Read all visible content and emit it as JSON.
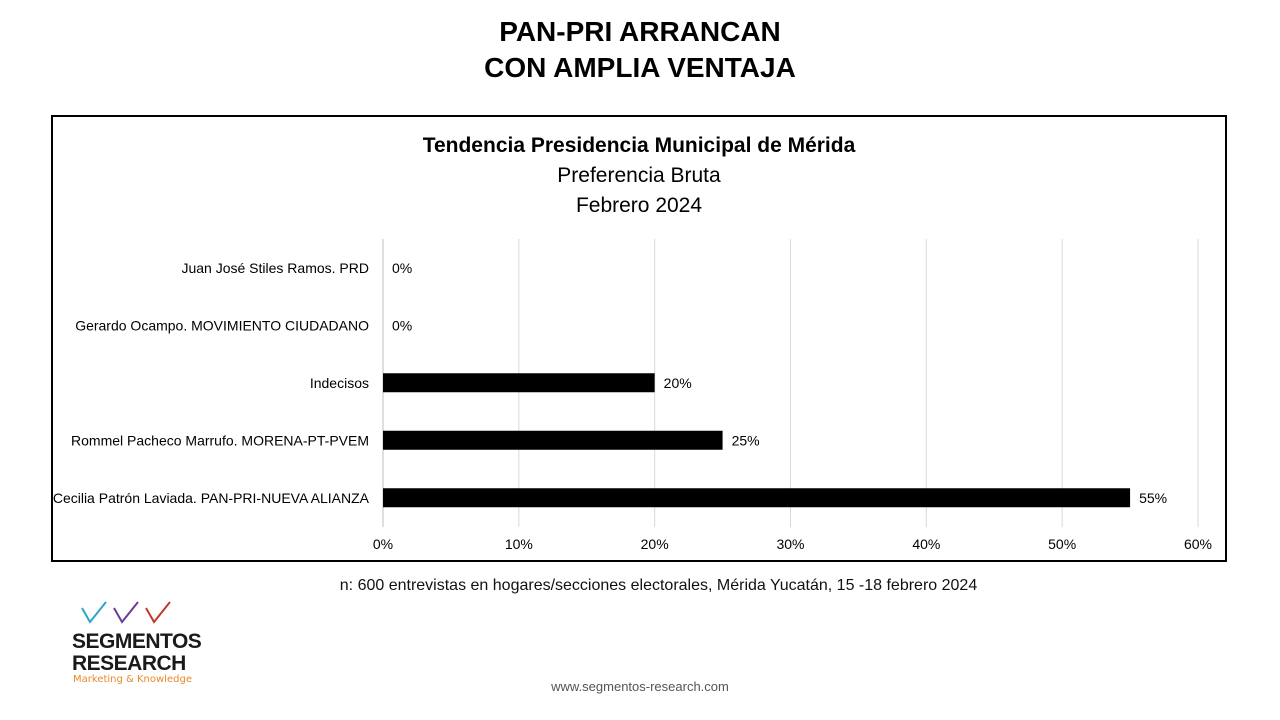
{
  "headline": {
    "line1": "PAN-PRI ARRANCAN",
    "line2": "CON AMPLIA VENTAJA"
  },
  "chart_data": {
    "type": "bar",
    "orientation": "horizontal",
    "title": "Tendencia Presidencia Municipal de Mérida",
    "subtitle1": "Preferencia Bruta",
    "subtitle2": "Febrero 2024",
    "categories": [
      "Juan José Stiles Ramos. PRD",
      "Gerardo Ocampo. MOVIMIENTO CIUDADANO",
      "Indecisos",
      "Rommel Pacheco Marrufo. MORENA-PT-PVEM",
      "Cecilia Patrón Laviada. PAN-PRI-NUEVA ALIANZA"
    ],
    "values": [
      0,
      0,
      20,
      25,
      55
    ],
    "value_labels": [
      "0%",
      "0%",
      "20%",
      "25%",
      "55%"
    ],
    "xlim": [
      0,
      60
    ],
    "xticks": [
      0,
      10,
      20,
      30,
      40,
      50,
      60
    ],
    "xtick_labels": [
      "0%",
      "10%",
      "20%",
      "30%",
      "40%",
      "50%",
      "60%"
    ],
    "grid": "vertical",
    "bar_color": "#000000",
    "grid_color": "#d9d9d9"
  },
  "footnote": "n: 600 entrevistas en hogares/secciones electorales, Mérida Yucatán, 15 -18 febrero 2024",
  "logo": {
    "name_line1": "SEGMENTOS",
    "name_line2": "RESEARCH",
    "tagline": "Marketing & Knowledge",
    "check_colors": [
      "#2aa6c9",
      "#6a3d9a",
      "#c0392b"
    ]
  },
  "website": "www.segmentos-research.com"
}
